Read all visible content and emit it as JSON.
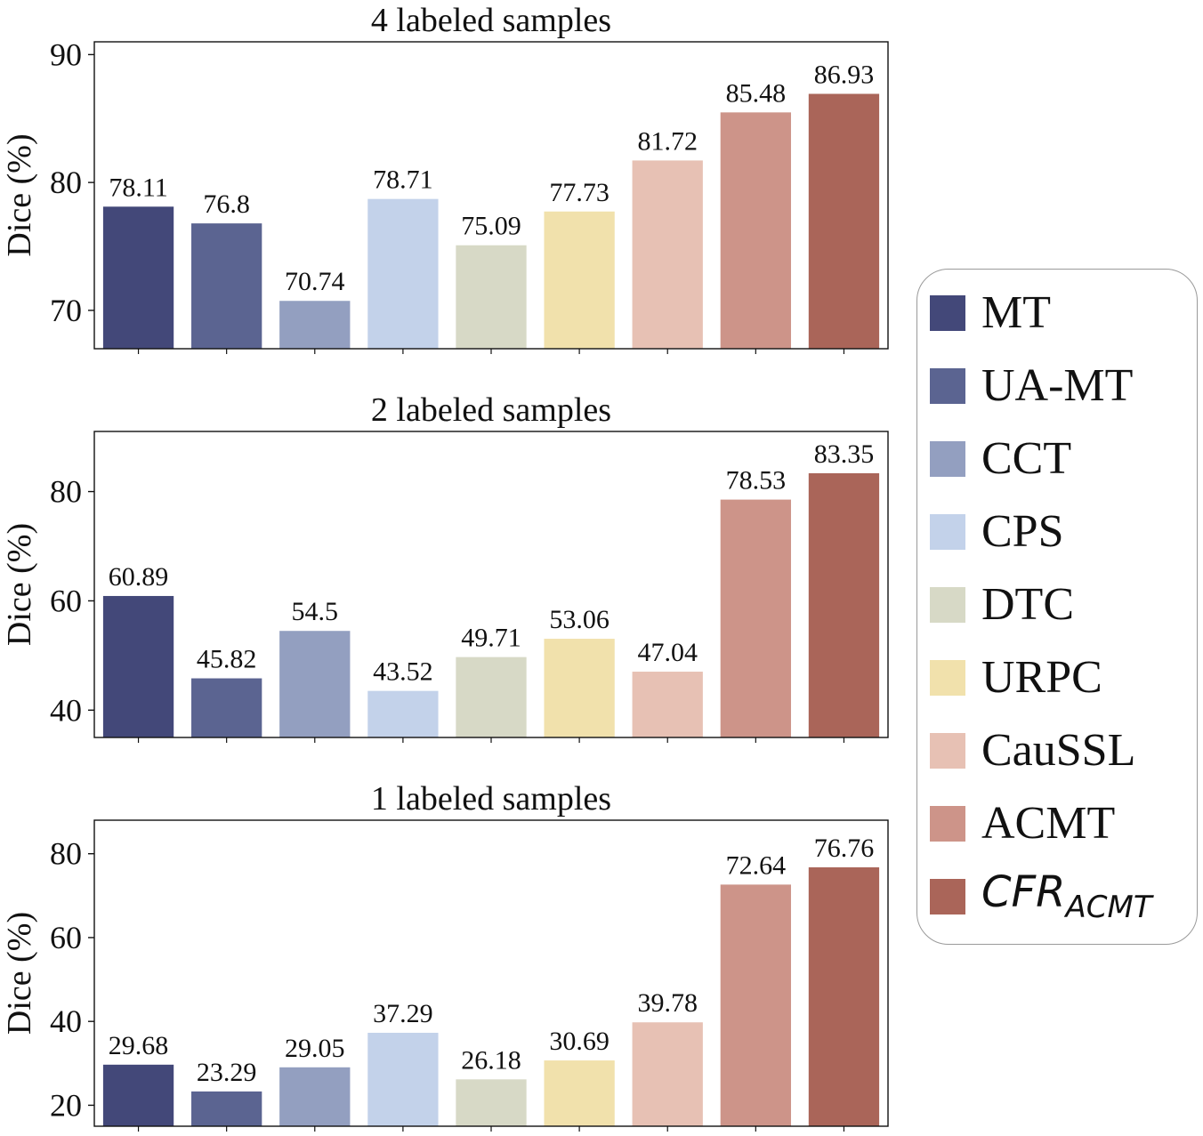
{
  "chart_data": [
    {
      "type": "bar",
      "title": "4 labeled samples",
      "ylabel": "Dice (%)",
      "xlabel": "",
      "ylim": [
        67,
        91
      ],
      "yticks": [
        70,
        80,
        90
      ],
      "categories": [
        "MT",
        "UA-MT",
        "CCT",
        "CPS",
        "DTC",
        "URPC",
        "CauSSL",
        "ACMT",
        "CFR_ACMT"
      ],
      "values": [
        78.11,
        76.8,
        70.74,
        78.71,
        75.09,
        77.73,
        81.72,
        85.48,
        86.93
      ],
      "value_labels": [
        "78.11",
        "76.8",
        "70.74",
        "78.71",
        "75.09",
        "77.73",
        "81.72",
        "85.48",
        "86.93"
      ]
    },
    {
      "type": "bar",
      "title": "2 labeled samples",
      "ylabel": "Dice (%)",
      "xlabel": "",
      "ylim": [
        35,
        91
      ],
      "yticks": [
        40,
        60,
        80
      ],
      "categories": [
        "MT",
        "UA-MT",
        "CCT",
        "CPS",
        "DTC",
        "URPC",
        "CauSSL",
        "ACMT",
        "CFR_ACMT"
      ],
      "values": [
        60.89,
        45.82,
        54.5,
        43.52,
        49.71,
        53.06,
        47.04,
        78.53,
        83.35
      ],
      "value_labels": [
        "60.89",
        "45.82",
        "54.5",
        "43.52",
        "49.71",
        "53.06",
        "47.04",
        "78.53",
        "83.35"
      ]
    },
    {
      "type": "bar",
      "title": "1 labeled samples",
      "ylabel": "Dice (%)",
      "xlabel": "",
      "ylim": [
        15,
        88
      ],
      "yticks": [
        20,
        40,
        60,
        80
      ],
      "categories": [
        "MT",
        "UA-MT",
        "CCT",
        "CPS",
        "DTC",
        "URPC",
        "CauSSL",
        "ACMT",
        "CFR_ACMT"
      ],
      "values": [
        29.68,
        23.29,
        29.05,
        37.29,
        26.18,
        30.69,
        39.78,
        72.64,
        76.76
      ],
      "value_labels": [
        "29.68",
        "23.29",
        "29.05",
        "37.29",
        "26.18",
        "30.69",
        "39.78",
        "72.64",
        "76.76"
      ]
    }
  ],
  "colors": [
    "#434879",
    "#5b6491",
    "#939fc0",
    "#c3d2ea",
    "#d7d9c6",
    "#f1e1ac",
    "#e7c1b4",
    "#cd9489",
    "#aa6559"
  ],
  "legend": {
    "placement": "right",
    "items": [
      {
        "label": "MT"
      },
      {
        "label": "UA-MT"
      },
      {
        "label": "CCT"
      },
      {
        "label": "CPS"
      },
      {
        "label": "DTC"
      },
      {
        "label": "URPC"
      },
      {
        "label": "CauSSL"
      },
      {
        "label": "ACMT"
      },
      {
        "label": "CFR",
        "subscript": "ACMT"
      }
    ]
  }
}
